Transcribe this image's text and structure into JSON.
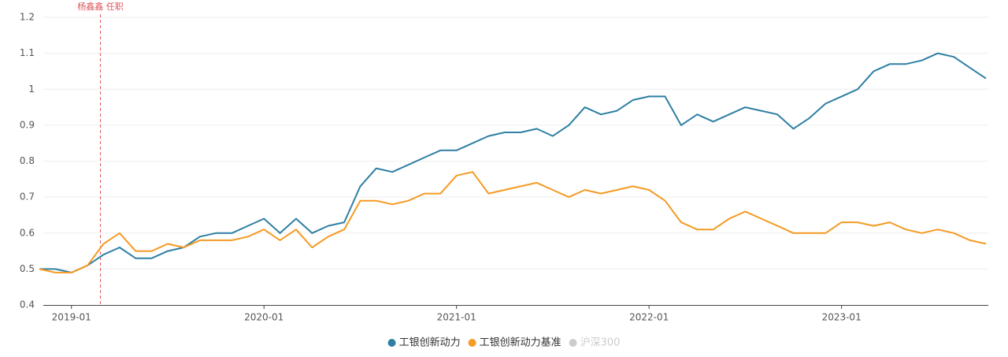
{
  "chart_data": {
    "type": "line",
    "x": [
      "2018-11",
      "2018-12",
      "2019-01",
      "2019-02",
      "2019-03",
      "2019-04",
      "2019-05",
      "2019-06",
      "2019-07",
      "2019-08",
      "2019-09",
      "2019-10",
      "2019-11",
      "2019-12",
      "2020-01",
      "2020-02",
      "2020-03",
      "2020-04",
      "2020-05",
      "2020-06",
      "2020-07",
      "2020-08",
      "2020-09",
      "2020-10",
      "2020-11",
      "2020-12",
      "2021-01",
      "2021-02",
      "2021-03",
      "2021-04",
      "2021-05",
      "2021-06",
      "2021-07",
      "2021-08",
      "2021-09",
      "2021-10",
      "2021-11",
      "2021-12",
      "2022-01",
      "2022-02",
      "2022-03",
      "2022-04",
      "2022-05",
      "2022-06",
      "2022-07",
      "2022-08",
      "2022-09",
      "2022-10",
      "2022-11",
      "2022-12",
      "2023-01",
      "2023-02",
      "2023-03",
      "2023-04",
      "2023-05",
      "2023-06",
      "2023-07",
      "2023-08",
      "2023-09",
      "2023-10"
    ],
    "series": [
      {
        "name": "工银创新动力",
        "color": "#2e7fa3",
        "values": [
          0.5,
          0.5,
          0.49,
          0.51,
          0.54,
          0.56,
          0.53,
          0.53,
          0.55,
          0.56,
          0.59,
          0.6,
          0.6,
          0.62,
          0.64,
          0.6,
          0.64,
          0.6,
          0.62,
          0.63,
          0.73,
          0.78,
          0.77,
          0.79,
          0.81,
          0.83,
          0.83,
          0.85,
          0.87,
          0.88,
          0.88,
          0.89,
          0.87,
          0.9,
          0.95,
          0.93,
          0.94,
          0.97,
          0.98,
          0.98,
          0.9,
          0.93,
          0.91,
          0.93,
          0.95,
          0.94,
          0.93,
          0.89,
          0.92,
          0.96,
          0.98,
          1.0,
          1.05,
          1.07,
          1.07,
          1.08,
          1.1,
          1.09,
          1.06,
          1.03
        ]
      },
      {
        "name": "工银创新动力基准",
        "color": "#f59a23",
        "values": [
          0.5,
          0.49,
          0.49,
          0.51,
          0.57,
          0.6,
          0.55,
          0.55,
          0.57,
          0.56,
          0.58,
          0.58,
          0.58,
          0.59,
          0.61,
          0.58,
          0.61,
          0.56,
          0.59,
          0.61,
          0.69,
          0.69,
          0.68,
          0.69,
          0.71,
          0.71,
          0.76,
          0.77,
          0.71,
          0.72,
          0.73,
          0.74,
          0.72,
          0.7,
          0.72,
          0.71,
          0.72,
          0.73,
          0.72,
          0.69,
          0.63,
          0.61,
          0.61,
          0.64,
          0.66,
          0.64,
          0.62,
          0.6,
          0.6,
          0.6,
          0.63,
          0.63,
          0.62,
          0.63,
          0.61,
          0.6,
          0.61,
          0.6,
          0.58,
          0.57
        ]
      }
    ],
    "hidden_series": [
      {
        "name": "沪深300",
        "color": "#cccccc"
      }
    ],
    "ylim": [
      0.4,
      1.2
    ],
    "yticks": [
      0.4,
      0.5,
      0.6,
      0.7,
      0.8,
      0.9,
      1,
      1.1,
      1.2
    ],
    "xticks": [
      "2019-01",
      "2020-01",
      "2021-01",
      "2022-01",
      "2023-01"
    ],
    "annotation": {
      "text": "杨鑫鑫 任职",
      "x": "2019-03",
      "color": "#e0575b"
    },
    "grid": true
  }
}
